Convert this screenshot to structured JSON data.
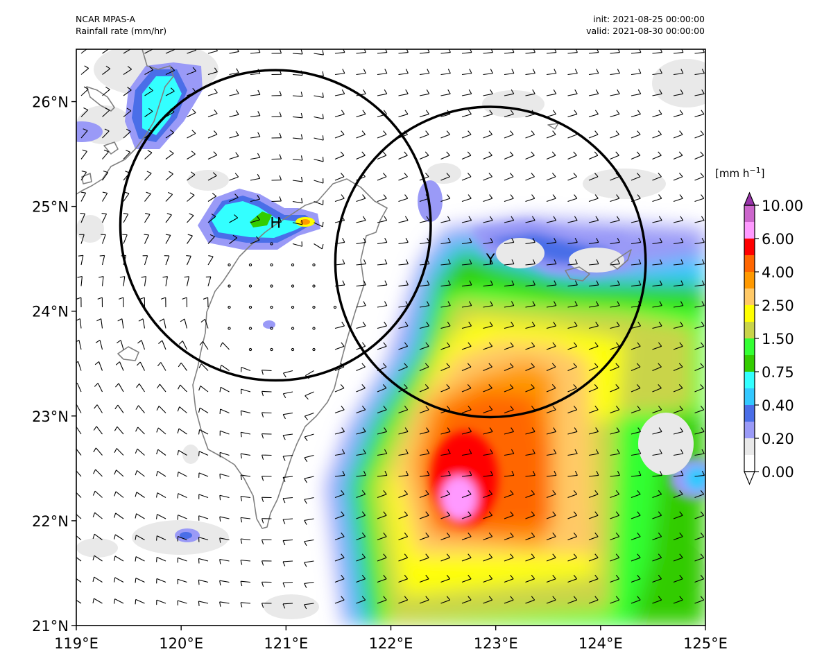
{
  "header": {
    "model": "NCAR MPAS-A",
    "variable": "Rainfall rate (mm/hr)",
    "init": "init: 2021-08-25 00:00:00",
    "valid": "valid: 2021-08-30 00:00:00"
  },
  "map": {
    "lon_range": [
      119,
      125
    ],
    "lat_range": [
      21,
      26.5
    ],
    "lon_ticks": [
      "119°E",
      "120°E",
      "121°E",
      "122°E",
      "123°E",
      "124°E",
      "125°E"
    ],
    "lat_ticks": [
      "21°N",
      "22°N",
      "23°N",
      "24°N",
      "25°N",
      "26°N"
    ],
    "markers": [
      {
        "label": "H",
        "lon": 120.9,
        "lat": 24.85
      },
      {
        "label": "Y",
        "lon": 122.95,
        "lat": 24.5
      }
    ],
    "circles": [
      {
        "center_lon": 120.9,
        "center_lat": 24.82,
        "radius_deg_lon": 1.48
      },
      {
        "center_lon": 122.95,
        "center_lat": 24.47,
        "radius_deg_lon": 1.48
      }
    ]
  },
  "colorbar": {
    "unit_prefix": "[mm h",
    "unit_exp": "−1",
    "unit_suffix": "]",
    "tick_labels": [
      "0.00",
      "0.20",
      "0.40",
      "0.75",
      "1.50",
      "2.50",
      "4.00",
      "6.00",
      "10.00"
    ],
    "levels": [
      0,
      0.1,
      0.2,
      0.3,
      0.4,
      0.5,
      0.75,
      1.0,
      1.5,
      2.0,
      2.5,
      3.0,
      4.0,
      5.0,
      6.0,
      8.0,
      10.0
    ],
    "colors": [
      "#ffffff",
      "#e9e9e9",
      "#9a9af7",
      "#4a6ee8",
      "#33c8ff",
      "#33ffff",
      "#33cc00",
      "#33ff33",
      "#c9d449",
      "#ffff00",
      "#ffc966",
      "#ff9900",
      "#ff6600",
      "#ff0000",
      "#ff99ff",
      "#cc66cc"
    ],
    "over_color": "#9933aa"
  }
}
